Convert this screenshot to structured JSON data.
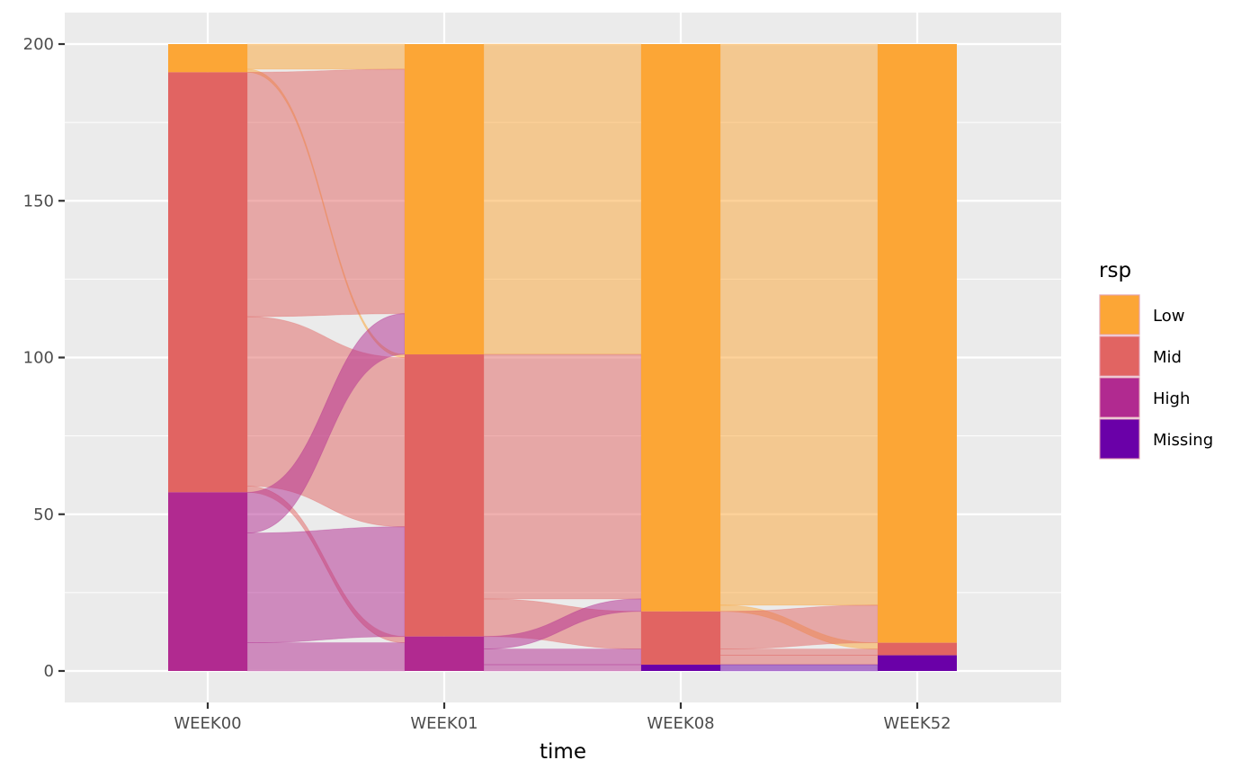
{
  "chart_data": {
    "type": "alluvial",
    "xlabel": "time",
    "ylabel": "",
    "ylim": [
      0,
      200
    ],
    "yticks": [
      0,
      50,
      100,
      150,
      200
    ],
    "grid": true,
    "legend_placement": "right",
    "legend_title": "rsp",
    "categories": [
      "WEEK00",
      "WEEK01",
      "WEEK08",
      "WEEK52"
    ],
    "levels": [
      "Low",
      "Mid",
      "High",
      "Missing"
    ],
    "colors": {
      "Low": "#FCA636",
      "Mid": "#E16462",
      "High": "#B12A90",
      "Missing": "#6A00A8"
    },
    "stacks": {
      "WEEK00": {
        "Low": 9,
        "Mid": 134,
        "High": 57,
        "Missing": 0
      },
      "WEEK01": {
        "Low": 99,
        "Mid": 90,
        "High": 11,
        "Missing": 0
      },
      "WEEK08": {
        "Low": 181,
        "Mid": 17,
        "High": 0,
        "Missing": 2
      },
      "WEEK52": {
        "Low": 191,
        "Mid": 4,
        "High": 0,
        "Missing": 5
      }
    },
    "flows": [
      {
        "from": "WEEK00",
        "to": "WEEK01",
        "from_level": "Low",
        "to_level": "Low",
        "value": 8
      },
      {
        "from": "WEEK00",
        "to": "WEEK01",
        "from_level": "Low",
        "to_level": "Mid",
        "value": 1
      },
      {
        "from": "WEEK00",
        "to": "WEEK01",
        "from_level": "Mid",
        "to_level": "Low",
        "value": 78
      },
      {
        "from": "WEEK00",
        "to": "WEEK01",
        "from_level": "Mid",
        "to_level": "Mid",
        "value": 54
      },
      {
        "from": "WEEK00",
        "to": "WEEK01",
        "from_level": "Mid",
        "to_level": "High",
        "value": 2
      },
      {
        "from": "WEEK00",
        "to": "WEEK01",
        "from_level": "High",
        "to_level": "Low",
        "value": 13
      },
      {
        "from": "WEEK00",
        "to": "WEEK01",
        "from_level": "High",
        "to_level": "Mid",
        "value": 35
      },
      {
        "from": "WEEK00",
        "to": "WEEK01",
        "from_level": "High",
        "to_level": "High",
        "value": 9
      },
      {
        "from": "WEEK01",
        "to": "WEEK08",
        "from_level": "Low",
        "to_level": "Low",
        "value": 99
      },
      {
        "from": "WEEK01",
        "to": "WEEK08",
        "from_level": "Mid",
        "to_level": "Low",
        "value": 78
      },
      {
        "from": "WEEK01",
        "to": "WEEK08",
        "from_level": "Mid",
        "to_level": "Mid",
        "value": 12
      },
      {
        "from": "WEEK01",
        "to": "WEEK08",
        "from_level": "High",
        "to_level": "Low",
        "value": 4
      },
      {
        "from": "WEEK01",
        "to": "WEEK08",
        "from_level": "High",
        "to_level": "Mid",
        "value": 5
      },
      {
        "from": "WEEK01",
        "to": "WEEK08",
        "from_level": "High",
        "to_level": "Missing",
        "value": 2
      },
      {
        "from": "WEEK08",
        "to": "WEEK52",
        "from_level": "Low",
        "to_level": "Low",
        "value": 179
      },
      {
        "from": "WEEK08",
        "to": "WEEK52",
        "from_level": "Low",
        "to_level": "Mid",
        "value": 2
      },
      {
        "from": "WEEK08",
        "to": "WEEK52",
        "from_level": "Mid",
        "to_level": "Low",
        "value": 12
      },
      {
        "from": "WEEK08",
        "to": "WEEK52",
        "from_level": "Mid",
        "to_level": "Mid",
        "value": 2
      },
      {
        "from": "WEEK08",
        "to": "WEEK52",
        "from_level": "Mid",
        "to_level": "Missing",
        "value": 3
      },
      {
        "from": "WEEK08",
        "to": "WEEK52",
        "from_level": "Missing",
        "to_level": "Missing",
        "value": 2
      }
    ]
  }
}
